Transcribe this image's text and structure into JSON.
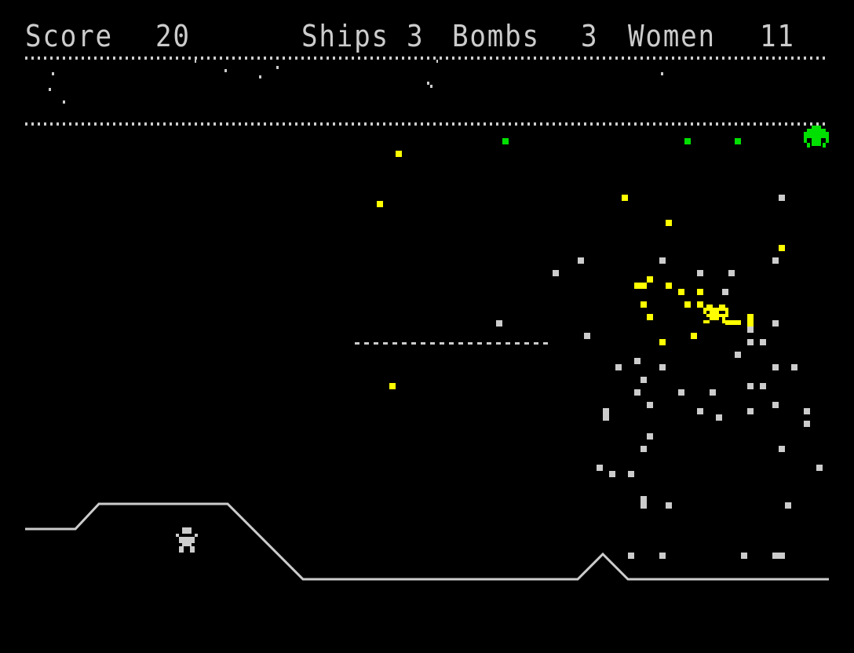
{
  "hud": {
    "score_label": "Score",
    "score_value": "20",
    "ships_label": "Ships",
    "ships_value": "3",
    "bombs_label": "Bombs",
    "bombs_value": "3",
    "women_label": "Women",
    "women_value": "11"
  },
  "colors": {
    "background": "#000000",
    "text": "#cccccc",
    "player_ship": "#ffff00",
    "alien": "#00e000",
    "debris": "#cccccc",
    "explosion": "#ffff00"
  },
  "sprites": {
    "player": "yellow-ship",
    "alien": "green-lander",
    "humanoid": "woman"
  }
}
